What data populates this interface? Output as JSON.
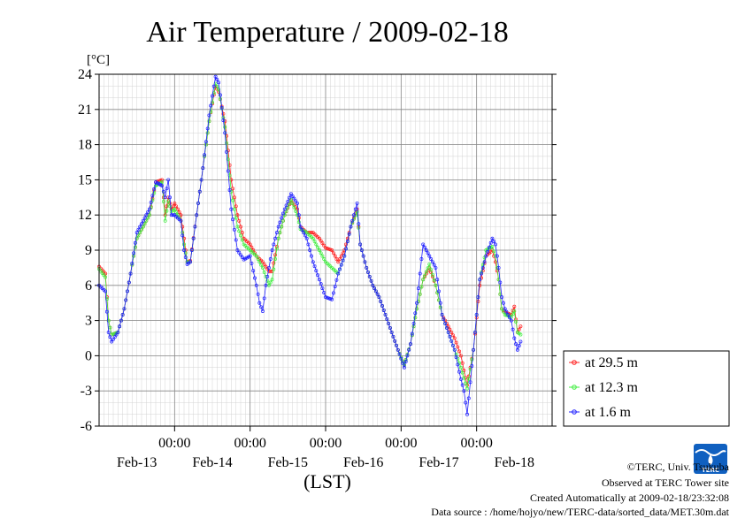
{
  "chart_data": {
    "type": "line",
    "title": "Air Temperature / 2009-02-18",
    "ylabel": "[°C]",
    "xlabel": "(LST)",
    "ylim": [
      -6,
      24
    ],
    "yticks": [
      "24",
      "21",
      "18",
      "15",
      "12",
      "9",
      "6",
      "3",
      "0",
      "-3",
      "-6"
    ],
    "xlim": [
      0,
      144
    ],
    "xticks_time": [
      "00:00",
      "00:00",
      "00:00",
      "00:00",
      "00:00"
    ],
    "xticks_time_at": [
      24,
      48,
      72,
      96,
      120
    ],
    "xticks_date": [
      "Feb-13",
      "Feb-14",
      "Feb-15",
      "Feb-16",
      "Feb-17",
      "Feb-18"
    ],
    "xticks_date_at": [
      12,
      36,
      60,
      84,
      108,
      132
    ],
    "x_unit": "hours since start of window",
    "grid": true,
    "legend_position": "bottom-right",
    "series": [
      {
        "name": "at 29.5 m",
        "color": "#ff2020",
        "points": [
          [
            0,
            7.6
          ],
          [
            2,
            7.0
          ],
          [
            3,
            3.0
          ],
          [
            4,
            1.8
          ],
          [
            6,
            2.0
          ],
          [
            8,
            4.0
          ],
          [
            10,
            7.0
          ],
          [
            12,
            10.0
          ],
          [
            14,
            11.0
          ],
          [
            16,
            12.0
          ],
          [
            18,
            14.8
          ],
          [
            20,
            15.0
          ],
          [
            21,
            12.0
          ],
          [
            22,
            13.5
          ],
          [
            23,
            12.5
          ],
          [
            24,
            13.0
          ],
          [
            26,
            12.0
          ],
          [
            27,
            10.0
          ],
          [
            28,
            8.0
          ],
          [
            29,
            8.1
          ],
          [
            31,
            12.0
          ],
          [
            33,
            16.0
          ],
          [
            35,
            20.0
          ],
          [
            37,
            23.0
          ],
          [
            38,
            22.5
          ],
          [
            40,
            20.0
          ],
          [
            42,
            15.0
          ],
          [
            44,
            12.0
          ],
          [
            46,
            10.0
          ],
          [
            48,
            9.5
          ],
          [
            50,
            8.5
          ],
          [
            52,
            8.0
          ],
          [
            54,
            7.2
          ],
          [
            55,
            7.2
          ],
          [
            57,
            10.0
          ],
          [
            59,
            12.0
          ],
          [
            61,
            13.2
          ],
          [
            63,
            12.5
          ],
          [
            64,
            11.0
          ],
          [
            66,
            10.5
          ],
          [
            68,
            10.5
          ],
          [
            70,
            10.0
          ],
          [
            72,
            9.2
          ],
          [
            74,
            9.0
          ],
          [
            76,
            8.0
          ],
          [
            78,
            9.0
          ],
          [
            80,
            11.0
          ],
          [
            82,
            12.5
          ],
          [
            83,
            9.5
          ],
          [
            85,
            7.5
          ],
          [
            87,
            6.0
          ],
          [
            89,
            5.0
          ],
          [
            91,
            3.5
          ],
          [
            93,
            2.0
          ],
          [
            95,
            0.5
          ],
          [
            97,
            -0.8
          ],
          [
            99,
            1.0
          ],
          [
            101,
            4.0
          ],
          [
            103,
            6.5
          ],
          [
            105,
            7.5
          ],
          [
            107,
            6.0
          ],
          [
            109,
            3.5
          ],
          [
            111,
            2.5
          ],
          [
            113,
            1.5
          ],
          [
            115,
            0.0
          ],
          [
            117,
            -2.5
          ],
          [
            119,
            0.5
          ],
          [
            121,
            6.0
          ],
          [
            123,
            8.5
          ],
          [
            125,
            9.0
          ],
          [
            126,
            8.0
          ],
          [
            127,
            6.5
          ],
          [
            128,
            4.0
          ],
          [
            129,
            3.7
          ],
          [
            131,
            3.5
          ],
          [
            132,
            4.2
          ],
          [
            133,
            2.0
          ],
          [
            134,
            2.5
          ]
        ]
      },
      {
        "name": "at 12.3 m",
        "color": "#40ee40",
        "points": [
          [
            0,
            7.4
          ],
          [
            2,
            6.7
          ],
          [
            3,
            3.0
          ],
          [
            4,
            1.8
          ],
          [
            6,
            2.0
          ],
          [
            8,
            4.0
          ],
          [
            10,
            7.0
          ],
          [
            12,
            10.0
          ],
          [
            14,
            11.0
          ],
          [
            16,
            12.0
          ],
          [
            18,
            14.5
          ],
          [
            20,
            14.8
          ],
          [
            21,
            11.5
          ],
          [
            22,
            13.2
          ],
          [
            23,
            12.3
          ],
          [
            24,
            12.5
          ],
          [
            26,
            11.5
          ],
          [
            27,
            9.5
          ],
          [
            28,
            8.0
          ],
          [
            29,
            8.0
          ],
          [
            31,
            12.0
          ],
          [
            33,
            16.0
          ],
          [
            35,
            20.0
          ],
          [
            37,
            23.2
          ],
          [
            38,
            22.7
          ],
          [
            40,
            19.5
          ],
          [
            42,
            14.0
          ],
          [
            44,
            11.0
          ],
          [
            46,
            9.5
          ],
          [
            48,
            9.0
          ],
          [
            50,
            8.5
          ],
          [
            52,
            7.5
          ],
          [
            54,
            6.0
          ],
          [
            55,
            6.5
          ],
          [
            57,
            10.0
          ],
          [
            59,
            12.0
          ],
          [
            61,
            13.3
          ],
          [
            63,
            12.0
          ],
          [
            64,
            10.8
          ],
          [
            66,
            10.5
          ],
          [
            68,
            10.0
          ],
          [
            70,
            9.0
          ],
          [
            72,
            8.0
          ],
          [
            74,
            7.5
          ],
          [
            76,
            7.0
          ],
          [
            78,
            8.5
          ],
          [
            80,
            11.0
          ],
          [
            82,
            12.3
          ],
          [
            83,
            9.5
          ],
          [
            85,
            7.5
          ],
          [
            87,
            6.0
          ],
          [
            89,
            5.0
          ],
          [
            91,
            3.5
          ],
          [
            93,
            2.0
          ],
          [
            95,
            0.5
          ],
          [
            97,
            -0.8
          ],
          [
            99,
            1.0
          ],
          [
            101,
            4.0
          ],
          [
            103,
            6.5
          ],
          [
            105,
            7.8
          ],
          [
            107,
            6.0
          ],
          [
            109,
            3.5
          ],
          [
            111,
            2.0
          ],
          [
            113,
            0.5
          ],
          [
            115,
            -1.0
          ],
          [
            117,
            -2.8
          ],
          [
            119,
            0.5
          ],
          [
            121,
            6.5
          ],
          [
            123,
            9.0
          ],
          [
            125,
            9.3
          ],
          [
            126,
            8.5
          ],
          [
            127,
            6.5
          ],
          [
            128,
            4.0
          ],
          [
            129,
            3.5
          ],
          [
            131,
            3.3
          ],
          [
            132,
            3.8
          ],
          [
            133,
            2.0
          ],
          [
            134,
            1.8
          ]
        ]
      },
      {
        "name": "at 1.6 m",
        "color": "#2020ff",
        "points": [
          [
            0,
            6.0
          ],
          [
            2,
            5.5
          ],
          [
            3,
            2.0
          ],
          [
            4,
            1.2
          ],
          [
            6,
            2.0
          ],
          [
            8,
            4.0
          ],
          [
            10,
            7.0
          ],
          [
            12,
            10.5
          ],
          [
            14,
            11.5
          ],
          [
            16,
            12.5
          ],
          [
            18,
            14.8
          ],
          [
            20,
            14.5
          ],
          [
            21,
            13.5
          ],
          [
            22,
            15.0
          ],
          [
            23,
            12.0
          ],
          [
            24,
            12.0
          ],
          [
            26,
            11.5
          ],
          [
            27,
            9.0
          ],
          [
            28,
            7.8
          ],
          [
            29,
            8.0
          ],
          [
            31,
            12.0
          ],
          [
            33,
            16.0
          ],
          [
            35,
            20.5
          ],
          [
            37,
            23.8
          ],
          [
            38,
            23.3
          ],
          [
            40,
            19.0
          ],
          [
            42,
            12.5
          ],
          [
            44,
            9.0
          ],
          [
            46,
            8.2
          ],
          [
            48,
            8.5
          ],
          [
            50,
            6.0
          ],
          [
            51,
            4.5
          ],
          [
            52,
            3.8
          ],
          [
            53,
            6.0
          ],
          [
            55,
            9.0
          ],
          [
            57,
            11.0
          ],
          [
            59,
            12.5
          ],
          [
            61,
            13.8
          ],
          [
            63,
            13.0
          ],
          [
            64,
            11.0
          ],
          [
            66,
            10.0
          ],
          [
            68,
            8.0
          ],
          [
            70,
            6.5
          ],
          [
            72,
            5.0
          ],
          [
            74,
            4.8
          ],
          [
            76,
            7.0
          ],
          [
            78,
            8.5
          ],
          [
            80,
            11.0
          ],
          [
            82,
            13.0
          ],
          [
            83,
            9.5
          ],
          [
            85,
            7.5
          ],
          [
            87,
            6.0
          ],
          [
            89,
            5.0
          ],
          [
            91,
            3.5
          ],
          [
            93,
            2.0
          ],
          [
            95,
            0.5
          ],
          [
            97,
            -1.0
          ],
          [
            99,
            1.0
          ],
          [
            101,
            4.5
          ],
          [
            103,
            9.5
          ],
          [
            105,
            8.5
          ],
          [
            107,
            7.5
          ],
          [
            109,
            3.5
          ],
          [
            111,
            2.0
          ],
          [
            113,
            0.5
          ],
          [
            115,
            -2.0
          ],
          [
            116,
            -3.0
          ],
          [
            117,
            -5.0
          ],
          [
            119,
            0.5
          ],
          [
            121,
            6.5
          ],
          [
            123,
            8.5
          ],
          [
            125,
            10.0
          ],
          [
            126,
            9.5
          ],
          [
            127,
            7.5
          ],
          [
            128,
            5.0
          ],
          [
            129,
            4.0
          ],
          [
            131,
            3.0
          ],
          [
            132,
            1.5
          ],
          [
            133,
            0.5
          ],
          [
            134,
            1.2
          ]
        ]
      }
    ]
  },
  "credits": {
    "line1": "©TERC, Univ. Tsukuba",
    "line2": "Observed at TERC Tower site",
    "line3": "Created Automatically at 2009-02-18/23:32:08",
    "line4": "Data source : /home/hojyo/new/TERC-data/sorted_data/MET.30m.dat"
  },
  "logo": {
    "text": "TERC",
    "color": "#1060c0"
  }
}
